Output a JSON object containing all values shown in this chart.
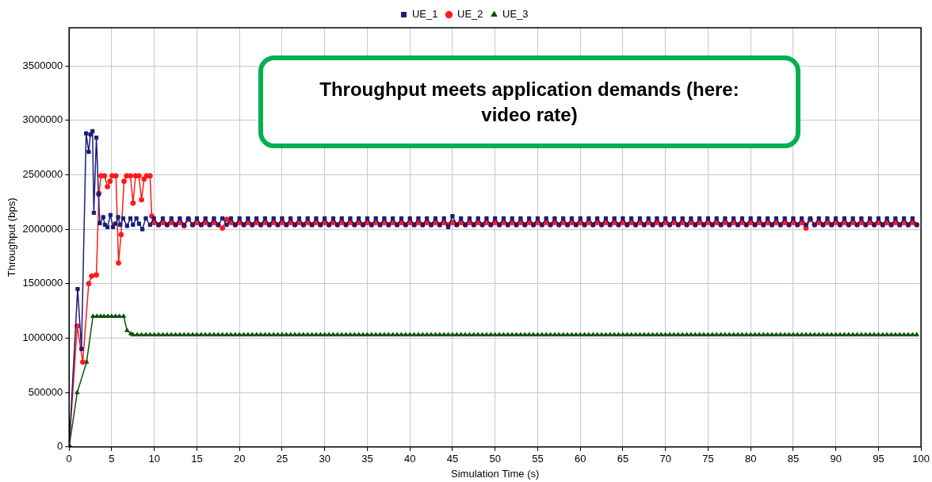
{
  "chart_data": {
    "type": "line",
    "xlabel": "Simulation Time (s)",
    "ylabel": "Throughput (bps)",
    "xlim": [
      0,
      100
    ],
    "xticks": [
      0,
      5,
      10,
      15,
      20,
      25,
      30,
      35,
      40,
      45,
      50,
      55,
      60,
      65,
      70,
      75,
      80,
      85,
      90,
      95,
      100
    ],
    "ylim": [
      0,
      3850000
    ],
    "yticks": [
      0,
      500000,
      1000000,
      1500000,
      2000000,
      2500000,
      3000000,
      3500000
    ],
    "grid": true,
    "legend": "top",
    "line_style": "solid",
    "annotations": [
      "Throughput meets application demands (here: video rate)"
    ],
    "series": [
      {
        "name": "UE_1",
        "color": "#1c1c78",
        "marker": "square",
        "x": [
          0,
          1,
          1.45,
          2,
          2.3,
          2.5,
          2.75,
          2.9,
          3.2,
          3.45,
          3.6,
          4,
          4.2,
          4.5,
          4.85,
          5.15,
          5.4,
          5.75,
          6,
          6.35,
          6.8,
          7.2,
          7.5,
          7.9,
          8.2,
          8.6,
          9,
          9.5,
          9.95,
          10.5,
          11,
          11.5,
          12,
          12.5,
          13,
          13.5,
          14,
          14.5,
          15,
          15.5,
          16,
          16.5,
          17,
          17.5,
          18,
          18.5,
          19,
          19.5,
          20,
          20.5,
          21,
          21.5,
          22,
          22.5,
          23,
          23.5,
          24,
          24.5,
          25,
          25.5,
          26,
          26.5,
          27,
          27.5,
          28,
          28.5,
          29,
          29.5,
          30,
          30.5,
          31,
          31.5,
          32,
          32.5,
          33,
          33.5,
          34,
          34.5,
          35,
          35.5,
          36,
          36.5,
          37,
          37.5,
          38,
          38.5,
          39,
          39.5,
          40,
          40.5,
          41,
          41.5,
          42,
          42.5,
          43,
          43.5,
          44,
          44.5,
          45,
          45.5,
          46,
          46.5,
          47,
          47.5,
          48,
          48.5,
          49,
          49.5,
          50,
          50.5,
          51,
          51.5,
          52,
          52.5,
          53,
          53.5,
          54,
          54.5,
          55,
          55.5,
          56,
          56.5,
          57,
          57.5,
          58,
          58.5,
          59,
          59.5,
          60,
          60.5,
          61,
          61.5,
          62,
          62.5,
          63,
          63.5,
          64,
          64.5,
          65,
          65.5,
          66,
          66.5,
          67,
          67.5,
          68,
          68.5,
          69,
          69.5,
          70,
          70.5,
          71,
          71.5,
          72,
          72.5,
          73,
          73.5,
          74,
          74.5,
          75,
          75.5,
          76,
          76.5,
          77,
          77.5,
          78,
          78.5,
          79,
          79.5,
          80,
          80.5,
          81,
          81.5,
          82,
          82.5,
          83,
          83.5,
          84,
          84.5,
          85,
          85.5,
          86,
          86.5,
          87,
          87.5,
          88,
          88.5,
          89,
          89.5,
          90,
          90.5,
          91,
          91.5,
          92,
          92.5,
          93,
          93.5,
          94,
          94.5,
          95,
          95.5,
          96,
          96.5,
          97,
          97.5,
          98,
          98.5,
          99,
          99.5
        ],
        "values": [
          0,
          1450000,
          900000,
          2880000,
          2710000,
          2870000,
          2900000,
          2150000,
          2840000,
          2320000,
          2055000,
          2110000,
          2040000,
          2020000,
          2130000,
          2020000,
          2050000,
          2110000,
          2040000,
          2100000,
          2030000,
          2100000,
          2040000,
          2100000,
          2050000,
          2000000,
          2100000,
          2040000,
          2100000,
          2040000,
          2100000,
          2040000,
          2100000,
          2040000,
          2100000,
          2040000,
          2100000,
          2040000,
          2100000,
          2040000,
          2100000,
          2040000,
          2100000,
          2040000,
          2100000,
          2040000,
          2100000,
          2040000,
          2100000,
          2040000,
          2100000,
          2040000,
          2100000,
          2040000,
          2100000,
          2040000,
          2100000,
          2040000,
          2100000,
          2040000,
          2100000,
          2040000,
          2100000,
          2040000,
          2100000,
          2040000,
          2100000,
          2040000,
          2100000,
          2040000,
          2100000,
          2040000,
          2100000,
          2040000,
          2100000,
          2040000,
          2100000,
          2040000,
          2100000,
          2040000,
          2100000,
          2040000,
          2100000,
          2040000,
          2100000,
          2040000,
          2100000,
          2040000,
          2100000,
          2040000,
          2100000,
          2040000,
          2100000,
          2040000,
          2100000,
          2040000,
          2100000,
          2020000,
          2120000,
          2040000,
          2100000,
          2040000,
          2100000,
          2040000,
          2100000,
          2040000,
          2100000,
          2040000,
          2100000,
          2040000,
          2100000,
          2040000,
          2100000,
          2040000,
          2100000,
          2040000,
          2100000,
          2040000,
          2100000,
          2040000,
          2100000,
          2040000,
          2100000,
          2040000,
          2100000,
          2040000,
          2100000,
          2040000,
          2100000,
          2040000,
          2100000,
          2040000,
          2100000,
          2040000,
          2100000,
          2040000,
          2100000,
          2040000,
          2100000,
          2040000,
          2100000,
          2040000,
          2100000,
          2040000,
          2100000,
          2040000,
          2100000,
          2040000,
          2100000,
          2040000,
          2100000,
          2040000,
          2100000,
          2040000,
          2100000,
          2040000,
          2100000,
          2040000,
          2100000,
          2040000,
          2100000,
          2040000,
          2100000,
          2040000,
          2100000,
          2040000,
          2100000,
          2040000,
          2100000,
          2040000,
          2100000,
          2040000,
          2100000,
          2040000,
          2100000,
          2040000,
          2100000,
          2040000,
          2100000,
          2040000,
          2100000,
          2040000,
          2100000,
          2040000,
          2100000,
          2040000,
          2100000,
          2040000,
          2100000,
          2040000,
          2100000,
          2040000,
          2100000,
          2040000,
          2100000,
          2040000,
          2100000,
          2040000,
          2100000,
          2040000,
          2100000,
          2040000,
          2100000,
          2040000,
          2100000,
          2040000,
          2100000,
          2040000
        ]
      },
      {
        "name": "UE_2",
        "color": "#ff1a1a",
        "marker": "circle",
        "x": [
          0,
          0.95,
          1.6,
          2.3,
          2.65,
          3.2,
          3.5,
          3.75,
          4.15,
          4.5,
          4.8,
          5.05,
          5.5,
          5.8,
          6.1,
          6.45,
          6.75,
          7.2,
          7.5,
          7.8,
          8.2,
          8.5,
          8.8,
          9.1,
          9.5,
          9.7,
          9.95,
          10.5,
          11,
          11.5,
          12,
          12.5,
          13,
          13.5,
          14,
          14.5,
          15,
          15.5,
          16,
          16.5,
          17,
          17.5,
          18,
          18.5,
          19,
          19.5,
          20,
          20.5,
          21,
          21.5,
          22,
          22.5,
          23,
          23.5,
          24,
          24.5,
          25,
          25.5,
          26,
          26.5,
          27,
          27.5,
          28,
          28.5,
          29,
          29.5,
          30,
          30.5,
          31,
          31.5,
          32,
          32.5,
          33,
          33.5,
          34,
          34.5,
          35,
          35.5,
          36,
          36.5,
          37,
          37.5,
          38,
          38.5,
          39,
          39.5,
          40,
          40.5,
          41,
          41.5,
          42,
          42.5,
          43,
          43.5,
          44,
          44.5,
          45,
          45.5,
          46,
          46.5,
          47,
          47.5,
          48,
          48.5,
          49,
          49.5,
          50,
          50.5,
          51,
          51.5,
          52,
          52.5,
          53,
          53.5,
          54,
          54.5,
          55,
          55.5,
          56,
          56.5,
          57,
          57.5,
          58,
          58.5,
          59,
          59.5,
          60,
          60.5,
          61,
          61.5,
          62,
          62.5,
          63,
          63.5,
          64,
          64.5,
          65,
          65.5,
          66,
          66.5,
          67,
          67.5,
          68,
          68.5,
          69,
          69.5,
          70,
          70.5,
          71,
          71.5,
          72,
          72.5,
          73,
          73.5,
          74,
          74.5,
          75,
          75.5,
          76,
          76.5,
          77,
          77.5,
          78,
          78.5,
          79,
          79.5,
          80,
          80.5,
          81,
          81.5,
          82,
          82.5,
          83,
          83.5,
          84,
          84.5,
          85,
          85.5,
          86,
          86.5,
          87,
          87.5,
          88,
          88.5,
          89,
          89.5,
          90,
          90.5,
          91,
          91.5,
          92,
          92.5,
          93,
          93.5,
          94,
          94.5,
          95,
          95.5,
          96,
          96.5,
          97,
          97.5,
          98,
          98.5,
          99,
          99.5
        ],
        "values": [
          0,
          1110000,
          780000,
          1500000,
          1570000,
          1580000,
          2330000,
          2490000,
          2490000,
          2390000,
          2440000,
          2490000,
          2490000,
          1690000,
          1950000,
          2440000,
          2490000,
          2490000,
          2240000,
          2490000,
          2490000,
          2270000,
          2460000,
          2490000,
          2490000,
          2120000,
          2060000,
          2040000,
          2060000,
          2040000,
          2060000,
          2040000,
          2060000,
          2030000,
          2090000,
          2040000,
          2060000,
          2040000,
          2060000,
          2040000,
          2060000,
          2040000,
          2010000,
          2090000,
          2060000,
          2040000,
          2060000,
          2040000,
          2060000,
          2040000,
          2060000,
          2040000,
          2060000,
          2040000,
          2060000,
          2040000,
          2060000,
          2040000,
          2060000,
          2040000,
          2060000,
          2040000,
          2060000,
          2040000,
          2060000,
          2040000,
          2060000,
          2040000,
          2060000,
          2040000,
          2060000,
          2040000,
          2060000,
          2040000,
          2060000,
          2040000,
          2060000,
          2040000,
          2060000,
          2040000,
          2060000,
          2040000,
          2060000,
          2040000,
          2060000,
          2040000,
          2060000,
          2040000,
          2060000,
          2040000,
          2060000,
          2040000,
          2060000,
          2040000,
          2060000,
          2040000,
          2060000,
          2040000,
          2060000,
          2040000,
          2060000,
          2040000,
          2060000,
          2040000,
          2060000,
          2040000,
          2060000,
          2040000,
          2060000,
          2040000,
          2060000,
          2040000,
          2060000,
          2040000,
          2060000,
          2040000,
          2060000,
          2040000,
          2060000,
          2040000,
          2060000,
          2040000,
          2060000,
          2040000,
          2060000,
          2040000,
          2060000,
          2040000,
          2060000,
          2040000,
          2060000,
          2040000,
          2060000,
          2040000,
          2060000,
          2040000,
          2060000,
          2040000,
          2060000,
          2040000,
          2060000,
          2040000,
          2060000,
          2040000,
          2060000,
          2040000,
          2060000,
          2040000,
          2060000,
          2040000,
          2060000,
          2040000,
          2060000,
          2040000,
          2060000,
          2040000,
          2060000,
          2040000,
          2060000,
          2040000,
          2060000,
          2040000,
          2060000,
          2040000,
          2060000,
          2040000,
          2060000,
          2040000,
          2060000,
          2040000,
          2060000,
          2040000,
          2060000,
          2040000,
          2060000,
          2040000,
          2060000,
          2040000,
          2060000,
          2010000,
          2090000,
          2040000,
          2060000,
          2040000,
          2060000,
          2040000,
          2060000,
          2040000,
          2060000,
          2040000,
          2060000,
          2040000,
          2060000,
          2040000,
          2060000,
          2040000,
          2060000,
          2040000,
          2060000,
          2040000,
          2060000,
          2040000,
          2060000,
          2040000,
          2060000,
          2040000
        ]
      },
      {
        "name": "UE_3",
        "color": "#0b500b",
        "marker": "triangle",
        "x": [
          0,
          0.95,
          2.05,
          2.8,
          3.25,
          3.7,
          4.1,
          4.55,
          5,
          5.45,
          5.9,
          6.4,
          6.8,
          7.25,
          7.5,
          8,
          8.5,
          9,
          9.5,
          10,
          10.5,
          11,
          11.5,
          12,
          12.5,
          13,
          13.5,
          14,
          14.5,
          15,
          15.5,
          16,
          16.5,
          17,
          17.5,
          18,
          18.5,
          19,
          19.5,
          20,
          20.5,
          21,
          21.5,
          22,
          22.5,
          23,
          23.5,
          24,
          24.5,
          25,
          25.5,
          26,
          26.5,
          27,
          27.5,
          28,
          28.5,
          29,
          29.5,
          30,
          30.5,
          31,
          31.5,
          32,
          32.5,
          33,
          33.5,
          34,
          34.5,
          35,
          35.5,
          36,
          36.5,
          37,
          37.5,
          38,
          38.5,
          39,
          39.5,
          40,
          40.5,
          41,
          41.5,
          42,
          42.5,
          43,
          43.5,
          44,
          44.5,
          45,
          45.5,
          46,
          46.5,
          47,
          47.5,
          48,
          48.5,
          49,
          49.5,
          50,
          50.5,
          51,
          51.5,
          52,
          52.5,
          53,
          53.5,
          54,
          54.5,
          55,
          55.5,
          56,
          56.5,
          57,
          57.5,
          58,
          58.5,
          59,
          59.5,
          60,
          60.5,
          61,
          61.5,
          62,
          62.5,
          63,
          63.5,
          64,
          64.5,
          65,
          65.5,
          66,
          66.5,
          67,
          67.5,
          68,
          68.5,
          69,
          69.5,
          70,
          70.5,
          71,
          71.5,
          72,
          72.5,
          73,
          73.5,
          74,
          74.5,
          75,
          75.5,
          76,
          76.5,
          77,
          77.5,
          78,
          78.5,
          79,
          79.5,
          80,
          80.5,
          81,
          81.5,
          82,
          82.5,
          83,
          83.5,
          84,
          84.5,
          85,
          85.5,
          86,
          86.5,
          87,
          87.5,
          88,
          88.5,
          89,
          89.5,
          90,
          90.5,
          91,
          91.5,
          92,
          92.5,
          93,
          93.5,
          94,
          94.5,
          95,
          95.5,
          96,
          96.5,
          97,
          97.5,
          98,
          98.5,
          99,
          99.5
        ],
        "values": [
          0,
          500000,
          780000,
          1200000,
          1200000,
          1200000,
          1200000,
          1200000,
          1200000,
          1200000,
          1200000,
          1200000,
          1070000,
          1040000,
          1030000,
          1030000,
          1030000,
          1030000,
          1030000,
          1030000,
          1030000,
          1030000,
          1030000,
          1030000,
          1030000,
          1030000,
          1030000,
          1030000,
          1030000,
          1030000,
          1030000,
          1030000,
          1030000,
          1030000,
          1030000,
          1030000,
          1030000,
          1030000,
          1030000,
          1030000,
          1030000,
          1030000,
          1030000,
          1030000,
          1030000,
          1030000,
          1030000,
          1030000,
          1030000,
          1030000,
          1030000,
          1030000,
          1030000,
          1030000,
          1030000,
          1030000,
          1030000,
          1030000,
          1030000,
          1030000,
          1030000,
          1030000,
          1030000,
          1030000,
          1030000,
          1030000,
          1030000,
          1030000,
          1030000,
          1030000,
          1030000,
          1030000,
          1030000,
          1030000,
          1030000,
          1030000,
          1030000,
          1030000,
          1030000,
          1030000,
          1030000,
          1030000,
          1030000,
          1030000,
          1030000,
          1030000,
          1030000,
          1030000,
          1030000,
          1030000,
          1030000,
          1030000,
          1030000,
          1030000,
          1030000,
          1030000,
          1030000,
          1030000,
          1030000,
          1030000,
          1030000,
          1030000,
          1030000,
          1030000,
          1030000,
          1030000,
          1030000,
          1030000,
          1030000,
          1030000,
          1030000,
          1030000,
          1030000,
          1030000,
          1030000,
          1030000,
          1030000,
          1030000,
          1030000,
          1030000,
          1030000,
          1030000,
          1030000,
          1030000,
          1030000,
          1030000,
          1030000,
          1030000,
          1030000,
          1030000,
          1030000,
          1030000,
          1030000,
          1030000,
          1030000,
          1030000,
          1030000,
          1030000,
          1030000,
          1030000,
          1030000,
          1030000,
          1030000,
          1030000,
          1030000,
          1030000,
          1030000,
          1030000,
          1030000,
          1030000,
          1030000,
          1030000,
          1030000,
          1030000,
          1030000,
          1030000,
          1030000,
          1030000,
          1030000,
          1030000,
          1030000,
          1030000,
          1030000,
          1030000,
          1030000,
          1030000,
          1030000,
          1030000,
          1030000,
          1030000,
          1030000,
          1030000,
          1030000,
          1030000,
          1030000,
          1030000,
          1030000,
          1030000,
          1030000,
          1030000,
          1030000,
          1030000,
          1030000,
          1030000,
          1030000,
          1030000,
          1030000,
          1030000,
          1030000,
          1030000,
          1030000,
          1030000,
          1030000,
          1030000,
          1030000,
          1030000,
          1030000,
          1030000,
          1030000
        ]
      }
    ]
  }
}
